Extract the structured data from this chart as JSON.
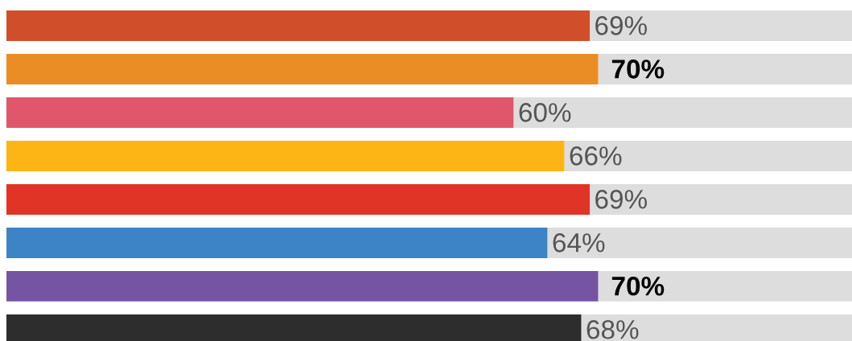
{
  "chart_data": {
    "type": "bar",
    "orientation": "horizontal",
    "stacked": true,
    "tick_labels": false,
    "xlim": [
      0,
      100
    ],
    "categories": [
      null,
      null,
      null,
      null,
      null,
      null,
      null,
      null
    ],
    "series": [
      {
        "colors": [
          "#d04f2a",
          "#eb8d25",
          "#e0566b",
          "#fdb515",
          "#df3426",
          "#3d84c6",
          "#7554a3",
          "#2d2d2d"
        ],
        "values": [
          69,
          70,
          60,
          66,
          69,
          64,
          70,
          68
        ],
        "value_labels": [
          "69%",
          "70%",
          "60%",
          "66%",
          "69%",
          "64%",
          "70%",
          "68%"
        ]
      },
      {
        "color": "#dddddd",
        "values": [
          31,
          30,
          40,
          34,
          31,
          36,
          30,
          32
        ]
      }
    ]
  }
}
